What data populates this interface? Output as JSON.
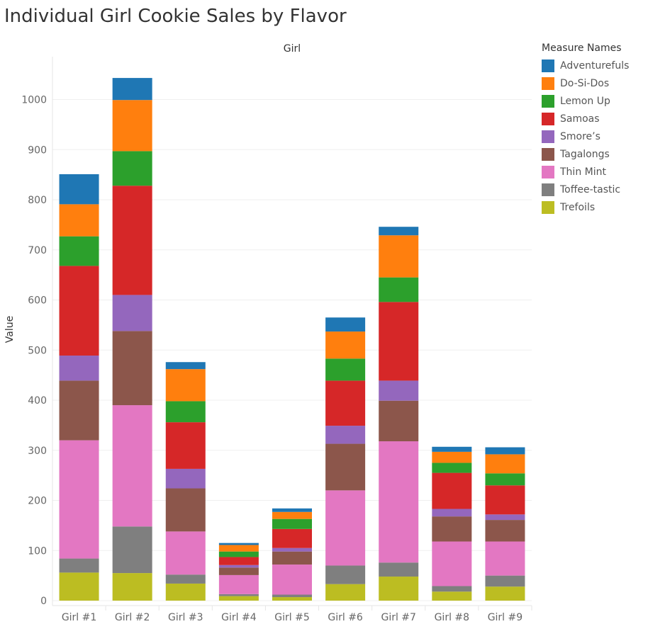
{
  "title": "Individual Girl Cookie Sales by Flavor",
  "chart_data": {
    "type": "bar",
    "stacked": true,
    "title": "Individual Girl Cookie Sales by Flavor",
    "column_header": "Girl",
    "xlabel": "",
    "ylabel": "Value",
    "ylim": [
      0,
      1080
    ],
    "yticks": [
      0,
      100,
      200,
      300,
      400,
      500,
      600,
      700,
      800,
      900,
      1000
    ],
    "grid": true,
    "legend_title": "Measure Names",
    "legend_position": "right",
    "categories": [
      "Girl #1",
      "Girl #2",
      "Girl #3",
      "Girl #4",
      "Girl #5",
      "Girl #6",
      "Girl #7",
      "Girl #8",
      "Girl #9"
    ],
    "series": [
      {
        "name": "Trefoils",
        "color": "#bcbd22",
        "values": [
          56,
          55,
          34,
          9,
          7,
          33,
          48,
          18,
          28
        ]
      },
      {
        "name": "Toffee-tastic",
        "color": "#7f7f7f",
        "values": [
          28,
          93,
          18,
          4,
          5,
          37,
          28,
          11,
          22
        ]
      },
      {
        "name": "Thin Mint",
        "color": "#e377c2",
        "values": [
          236,
          242,
          86,
          38,
          60,
          150,
          242,
          89,
          68
        ]
      },
      {
        "name": "Tagalongs",
        "color": "#8c564b",
        "values": [
          119,
          148,
          86,
          15,
          26,
          93,
          81,
          50,
          43
        ]
      },
      {
        "name": "Smore’s",
        "color": "#9467bd",
        "values": [
          50,
          72,
          39,
          5,
          7,
          36,
          40,
          15,
          11
        ]
      },
      {
        "name": "Samoas",
        "color": "#d62728",
        "values": [
          179,
          218,
          93,
          16,
          38,
          90,
          157,
          72,
          58
        ]
      },
      {
        "name": "Lemon Up",
        "color": "#2ca02c",
        "values": [
          59,
          69,
          42,
          11,
          20,
          44,
          49,
          20,
          24
        ]
      },
      {
        "name": "Do-Si-Dos",
        "color": "#ff7f0e",
        "values": [
          64,
          102,
          64,
          13,
          14,
          54,
          84,
          22,
          38
        ]
      },
      {
        "name": "Adventurefuls",
        "color": "#1f77b4",
        "values": [
          60,
          44,
          14,
          4,
          7,
          28,
          17,
          10,
          14
        ]
      }
    ]
  }
}
